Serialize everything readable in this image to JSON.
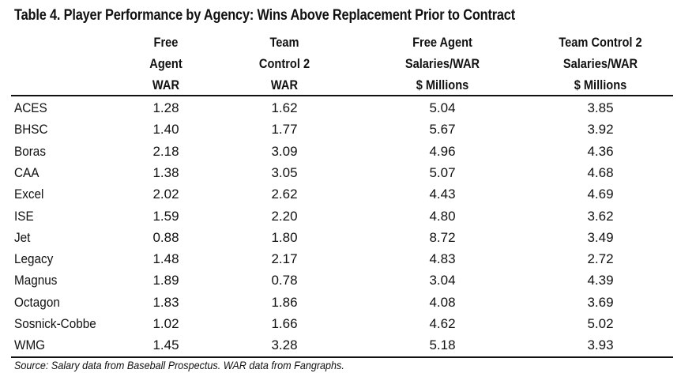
{
  "title": "Table 4.  Player Performance by Agency: Wins Above Replacement Prior to Contract",
  "headers": [
    [
      "Free",
      "Agent",
      "WAR"
    ],
    [
      "Team",
      "Control 2",
      "WAR"
    ],
    [
      "Free Agent",
      "Salaries/WAR",
      "$ Millions"
    ],
    [
      "Team Control 2",
      "Salaries/WAR",
      "$ Millions"
    ]
  ],
  "rows": [
    {
      "agency": "ACES",
      "fa_war": "1.28",
      "tc2_war": "1.62",
      "fa_sal": "5.04",
      "tc2_sal": "3.85"
    },
    {
      "agency": "BHSC",
      "fa_war": "1.40",
      "tc2_war": "1.77",
      "fa_sal": "5.67",
      "tc2_sal": "3.92"
    },
    {
      "agency": "Boras",
      "fa_war": "2.18",
      "tc2_war": "3.09",
      "fa_sal": "4.96",
      "tc2_sal": "4.36"
    },
    {
      "agency": "CAA",
      "fa_war": "1.38",
      "tc2_war": "3.05",
      "fa_sal": "5.07",
      "tc2_sal": "4.68"
    },
    {
      "agency": "Excel",
      "fa_war": "2.02",
      "tc2_war": "2.62",
      "fa_sal": "4.43",
      "tc2_sal": "4.69"
    },
    {
      "agency": "ISE",
      "fa_war": "1.59",
      "tc2_war": "2.20",
      "fa_sal": "4.80",
      "tc2_sal": "3.62"
    },
    {
      "agency": "Jet",
      "fa_war": "0.88",
      "tc2_war": "1.80",
      "fa_sal": "8.72",
      "tc2_sal": "3.49"
    },
    {
      "agency": "Legacy",
      "fa_war": "1.48",
      "tc2_war": "2.17",
      "fa_sal": "4.83",
      "tc2_sal": "2.72"
    },
    {
      "agency": "Magnus",
      "fa_war": "1.89",
      "tc2_war": "0.78",
      "fa_sal": "3.04",
      "tc2_sal": "4.39"
    },
    {
      "agency": "Octagon",
      "fa_war": "1.83",
      "tc2_war": "1.86",
      "fa_sal": "4.08",
      "tc2_sal": "3.69"
    },
    {
      "agency": "Sosnick-Cobbe",
      "fa_war": "1.02",
      "tc2_war": "1.66",
      "fa_sal": "4.62",
      "tc2_sal": "5.02"
    },
    {
      "agency": "WMG",
      "fa_war": "1.45",
      "tc2_war": "3.28",
      "fa_sal": "5.18",
      "tc2_sal": "3.93"
    }
  ],
  "source": "Source: Salary data from Baseball Prospectus. WAR data from Fangraphs."
}
